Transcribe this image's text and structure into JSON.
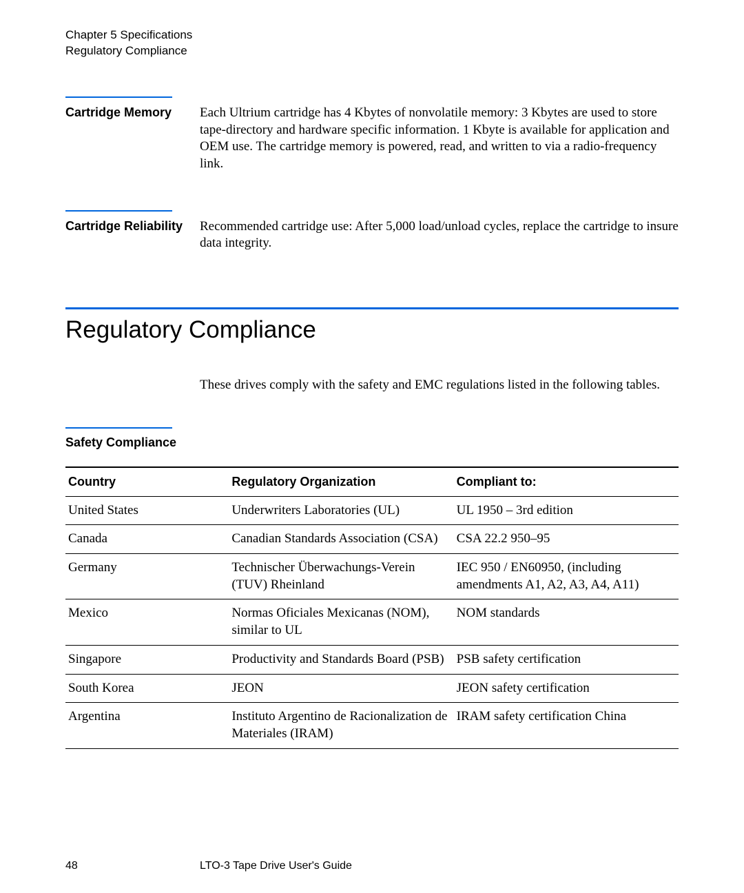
{
  "header": {
    "chapter_line": "Chapter 5  Specifications",
    "section_line": "Regulatory Compliance"
  },
  "sections": [
    {
      "label": "Cartridge Memory",
      "body": "Each Ultrium cartridge has 4 Kbytes of nonvolatile memory: 3 Kbytes are used to store tape-directory and hardware specific information. 1 Kbyte is available for application and OEM use. The cartridge memory is powered, read, and written to via a radio-frequency link."
    },
    {
      "label": "Cartridge Reliability",
      "body": "Recommended cartridge use: After 5,000 load/unload cycles, replace the cartridge to insure data integrity."
    }
  ],
  "main_heading": "Regulatory Compliance",
  "intro": "These drives comply with the safety and EMC regulations listed in the following tables.",
  "safety": {
    "label": "Safety Compliance",
    "columns": [
      "Country",
      "Regulatory Organization",
      "Compliant to:"
    ],
    "rows": [
      [
        "United States",
        "Underwriters Laboratories (UL)",
        "UL 1950 – 3rd edition"
      ],
      [
        "Canada",
        "Canadian Standards Association (CSA)",
        "CSA 22.2 950–95"
      ],
      [
        "Germany",
        "Technischer Überwachungs-Verein (TUV) Rheinland",
        "IEC 950 / EN60950, (including amendments A1, A2, A3, A4, A11)"
      ],
      [
        "Mexico",
        "Normas Oficiales Mexicanas (NOM), similar to UL",
        "NOM standards"
      ],
      [
        "Singapore",
        "Productivity and Standards Board (PSB)",
        "PSB safety certification"
      ],
      [
        "South Korea",
        "JEON",
        "JEON safety certification"
      ],
      [
        "Argentina",
        "Instituto Argentino de Racionalization de Materiales (IRAM)",
        "IRAM safety certification China"
      ]
    ]
  },
  "footer": {
    "page_number": "48",
    "doc_title": "LTO-3 Tape Drive User's Guide"
  },
  "colors": {
    "blue_rule": "#0066dd",
    "text": "#000000",
    "background": "#ffffff"
  },
  "fonts": {
    "sans": "Arial, Helvetica, sans-serif",
    "serif": "Book Antiqua, Palatino, Georgia, serif",
    "body_size_pt": 14,
    "label_size_pt": 13,
    "heading_size_pt": 26
  }
}
